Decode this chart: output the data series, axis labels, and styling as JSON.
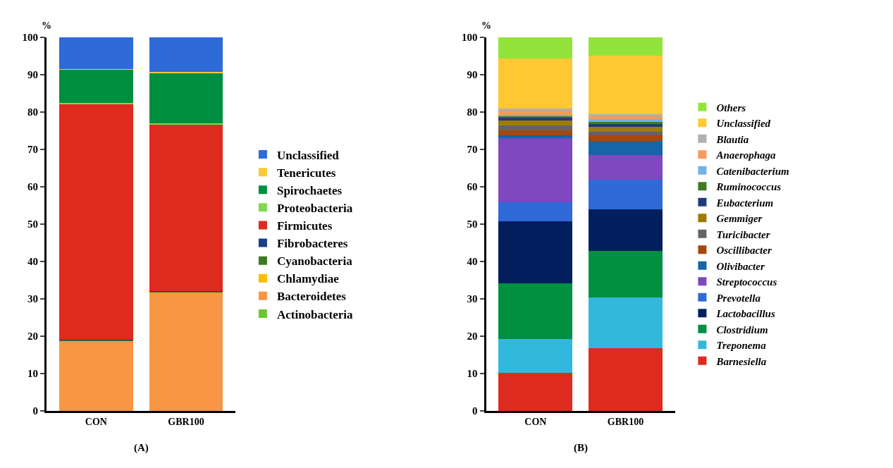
{
  "chart_data": [
    {
      "type": "bar",
      "stacked": true,
      "title": "(A)",
      "ylabel": "%",
      "categories": [
        "CON",
        "GBR100"
      ],
      "ylim": [
        0,
        100
      ],
      "yticks": [
        0,
        10,
        20,
        30,
        40,
        50,
        60,
        70,
        80,
        90,
        100
      ],
      "grid": false,
      "legend": "right",
      "series": [
        {
          "name": "Actinobacteria",
          "color": "#6cc82c",
          "values": [
            null,
            null
          ]
        },
        {
          "name": "Bacteroidetes",
          "color": "#f89646",
          "values": [
            18.8,
            31.8
          ]
        },
        {
          "name": "Chlamydiae",
          "color": "#fcbd00",
          "values": [
            0.1,
            0.1
          ]
        },
        {
          "name": "Cyanobacteria",
          "color": "#3c7a20",
          "values": [
            0.1,
            0.1
          ]
        },
        {
          "name": "Fibrobacteres",
          "color": "#173f8a",
          "values": [
            0.1,
            0.1
          ]
        },
        {
          "name": "Firmicutes",
          "color": "#de2b1f",
          "values": [
            63.0,
            44.7
          ]
        },
        {
          "name": "Proteobacteria",
          "color": "#80d850",
          "values": [
            0.2,
            0.2
          ]
        },
        {
          "name": "Spirochaetes",
          "color": "#008f40",
          "values": [
            9.1,
            13.5
          ]
        },
        {
          "name": "Tenericutes",
          "color": "#fcc93a",
          "values": [
            0.1,
            0.1
          ]
        },
        {
          "name": "Unclassified",
          "color": "#2e6bd9",
          "values": [
            8.4,
            9.3
          ]
        }
      ]
    },
    {
      "type": "bar",
      "stacked": true,
      "title": "(B)",
      "ylabel": "%",
      "categories": [
        "CON",
        "GBR100"
      ],
      "ylim": [
        0,
        100
      ],
      "yticks": [
        0,
        10,
        20,
        30,
        40,
        50,
        60,
        70,
        80,
        90,
        100
      ],
      "grid": false,
      "legend": "right",
      "series": [
        {
          "name": "Barnesiella",
          "color": "#de2b1f",
          "values": [
            10.2,
            16.9
          ]
        },
        {
          "name": "Treponema",
          "color": "#33b8dd",
          "values": [
            9.0,
            13.4
          ]
        },
        {
          "name": "Clostridium",
          "color": "#009040",
          "values": [
            15.0,
            12.5
          ]
        },
        {
          "name": "Lactobacillus",
          "color": "#021e5c",
          "values": [
            16.6,
            11.2
          ]
        },
        {
          "name": "Prevotella",
          "color": "#2f6ad8",
          "values": [
            5.1,
            7.9
          ]
        },
        {
          "name": "Streptococcus",
          "color": "#7f47c0",
          "values": [
            17.1,
            6.6
          ]
        },
        {
          "name": "Olivibacter",
          "color": "#1565a8",
          "values": [
            0.8,
            3.8
          ]
        },
        {
          "name": "Oscillibacter",
          "color": "#a8460c",
          "values": [
            1.2,
            1.4
          ]
        },
        {
          "name": "Turicibacter",
          "color": "#646464",
          "values": [
            1.4,
            0.9
          ]
        },
        {
          "name": "Gemmiger",
          "color": "#9c7c05",
          "values": [
            1.2,
            1.3
          ]
        },
        {
          "name": "Eubacterium",
          "color": "#1e3c7a",
          "values": [
            0.9,
            0.8
          ]
        },
        {
          "name": "Ruminococcus",
          "color": "#3f7a22",
          "values": [
            0.5,
            0.6
          ]
        },
        {
          "name": "Catenibacterium",
          "color": "#6fb2e8",
          "values": [
            0.2,
            0.8
          ]
        },
        {
          "name": "Anaerophaga",
          "color": "#f79a5a",
          "values": [
            1.2,
            0.7
          ]
        },
        {
          "name": "Blautia",
          "color": "#b0b0b0",
          "values": [
            0.5,
            0.5
          ]
        },
        {
          "name": "Unclassified",
          "color": "#fec832",
          "values": [
            13.3,
            15.7
          ]
        },
        {
          "name": "Others",
          "color": "#92e43c",
          "values": [
            5.8,
            5.0
          ]
        }
      ]
    }
  ]
}
